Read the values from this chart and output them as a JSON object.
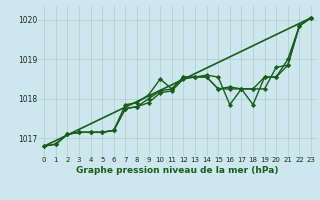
{
  "title": "Graphe pression niveau de la mer (hPa)",
  "background_color": "#cce8ee",
  "grid_color": "#aacccc",
  "line_color": "#1a5c1a",
  "xlim": [
    -0.5,
    23.5
  ],
  "ylim": [
    1016.55,
    1020.35
  ],
  "yticks": [
    1017,
    1018,
    1019,
    1020
  ],
  "xticks": [
    0,
    1,
    2,
    3,
    4,
    5,
    6,
    7,
    8,
    9,
    10,
    11,
    12,
    13,
    14,
    15,
    16,
    17,
    18,
    19,
    20,
    21,
    22,
    23
  ],
  "series": [
    {
      "x": [
        0,
        23
      ],
      "y": [
        1016.8,
        1020.05
      ],
      "style": "solid",
      "lw": 1.2,
      "marker": null
    },
    {
      "x": [
        0,
        1,
        2,
        3,
        4,
        5,
        6,
        7,
        8,
        9,
        10,
        11,
        12,
        13,
        14,
        15,
        16,
        17,
        18,
        19,
        20,
        21,
        22,
        23
      ],
      "y": [
        1016.8,
        1016.85,
        1017.1,
        1017.15,
        1017.15,
        1017.15,
        1017.2,
        1017.75,
        1017.8,
        1018.0,
        1018.2,
        1018.25,
        1018.55,
        1018.55,
        1018.55,
        1018.25,
        1018.3,
        1018.25,
        1018.25,
        1018.55,
        1018.55,
        1019.0,
        1019.85,
        1020.05
      ],
      "style": "solid",
      "lw": 1.0,
      "marker": "D"
    },
    {
      "x": [
        1,
        2,
        3,
        4,
        5,
        6,
        7,
        8,
        9,
        10,
        11,
        12,
        13,
        14,
        15,
        16,
        17,
        18,
        19,
        20,
        21,
        22,
        23
      ],
      "y": [
        1016.85,
        1017.1,
        1017.15,
        1017.15,
        1017.15,
        1017.2,
        1017.85,
        1017.9,
        1018.1,
        1018.5,
        1018.25,
        1018.55,
        1018.55,
        1018.6,
        1018.55,
        1017.85,
        1018.25,
        1017.85,
        1018.55,
        1018.55,
        1018.85,
        1019.85,
        1020.05
      ],
      "style": "solid",
      "lw": 1.0,
      "marker": "D"
    },
    {
      "x": [
        0,
        1,
        2,
        3,
        4,
        5,
        6,
        7,
        8,
        9,
        10,
        11,
        12,
        13,
        14,
        15,
        16,
        17,
        18,
        19,
        20,
        21,
        22,
        23
      ],
      "y": [
        1016.8,
        1016.85,
        1017.1,
        1017.15,
        1017.15,
        1017.15,
        1017.2,
        1017.75,
        1017.8,
        1017.9,
        1018.15,
        1018.2,
        1018.5,
        1018.55,
        1018.55,
        1018.25,
        1018.25,
        1018.25,
        1018.25,
        1018.25,
        1018.8,
        1018.85,
        1019.85,
        1020.05
      ],
      "style": "solid",
      "lw": 1.0,
      "marker": "D"
    }
  ]
}
